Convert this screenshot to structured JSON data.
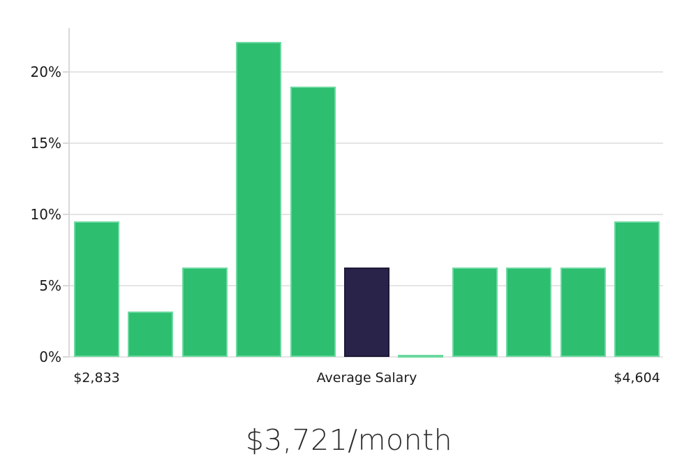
{
  "chart_data": {
    "type": "bar",
    "title": "$3,721/month",
    "values": [
      9.5,
      3.2,
      6.3,
      22.1,
      19.0,
      6.3,
      0.1,
      6.3,
      6.3,
      6.3,
      9.5
    ],
    "bar_roles": [
      "dist",
      "dist",
      "dist",
      "dist",
      "dist",
      "average",
      "dist",
      "dist",
      "dist",
      "dist",
      "dist"
    ],
    "highlight_index": 5,
    "y_tick_values": [
      0,
      5,
      10,
      15,
      20
    ],
    "y_tick_labels": [
      "0%",
      "5%",
      "10%",
      "15%",
      "20%"
    ],
    "x_axis_labels": [
      {
        "text": "$2,833",
        "bar_index": 0
      },
      {
        "text": "Average Salary",
        "bar_index": 5
      },
      {
        "text": "$4,604",
        "bar_index": 10
      }
    ],
    "ylim": [
      0,
      23.1
    ],
    "xlabel": "",
    "ylabel": "",
    "grid": "horizontal",
    "legend": "none"
  },
  "colors": {
    "bar_green": "#2dbe70",
    "bar_green_edge": "#6cd9a0",
    "bar_navy": "#2a2349",
    "bar_navy_edge": "#1e1937",
    "gridline": "#e4e4e4",
    "axis_line": "#d8d8d8",
    "tick_text": "#1a1a1a",
    "title_text": "#2b2b2b"
  }
}
